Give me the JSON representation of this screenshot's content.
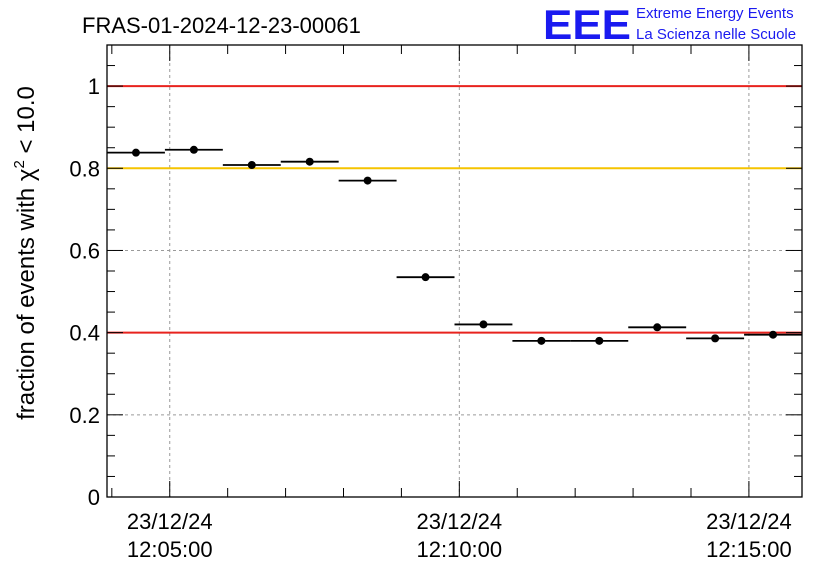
{
  "chart_data": {
    "type": "scatter",
    "title": "FRAS-01-2024-12-23-00061",
    "ylabel": "fraction of events with χ² < 10.0",
    "ylabel_parts": {
      "pre": "fraction of events with ",
      "chi": "χ",
      "sup": "2",
      "post": " < 10.0"
    },
    "xlabel": "",
    "xlim": [
      "12:03:55",
      "12:15:55"
    ],
    "ylim": [
      0,
      1.1
    ],
    "grid": true,
    "yticks": [
      0,
      0.2,
      0.4,
      0.6,
      0.8,
      1
    ],
    "ytick_labels": [
      "0",
      "0.2",
      "0.4",
      "0.6",
      "0.8",
      "1"
    ],
    "xticks": [
      {
        "x": "12:05:00",
        "date": "23/12/24",
        "time": "12:05:00"
      },
      {
        "x": "12:10:00",
        "date": "23/12/24",
        "time": "12:10:00"
      },
      {
        "x": "12:15:00",
        "date": "23/12/24",
        "time": "12:15:00"
      }
    ],
    "hlines": [
      {
        "y": 1.0,
        "color": "#e8231e"
      },
      {
        "y": 0.8,
        "color": "#f5c400"
      },
      {
        "y": 0.4,
        "color": "#e8231e"
      }
    ],
    "points": [
      {
        "x_start": "12:03:55",
        "x_end": "12:04:55",
        "x": "12:04:25",
        "y": 0.838
      },
      {
        "x_start": "12:04:55",
        "x_end": "12:05:55",
        "x": "12:05:25",
        "y": 0.845
      },
      {
        "x_start": "12:05:55",
        "x_end": "12:06:55",
        "x": "12:06:25",
        "y": 0.808
      },
      {
        "x_start": "12:06:55",
        "x_end": "12:07:55",
        "x": "12:07:25",
        "y": 0.816
      },
      {
        "x_start": "12:07:55",
        "x_end": "12:08:55",
        "x": "12:08:25",
        "y": 0.77
      },
      {
        "x_start": "12:08:55",
        "x_end": "12:09:55",
        "x": "12:09:25",
        "y": 0.535
      },
      {
        "x_start": "12:09:55",
        "x_end": "12:10:55",
        "x": "12:10:25",
        "y": 0.42
      },
      {
        "x_start": "12:10:55",
        "x_end": "12:11:55",
        "x": "12:11:25",
        "y": 0.38
      },
      {
        "x_start": "12:11:55",
        "x_end": "12:12:55",
        "x": "12:12:25",
        "y": 0.38
      },
      {
        "x_start": "12:12:55",
        "x_end": "12:13:55",
        "x": "12:13:25",
        "y": 0.413
      },
      {
        "x_start": "12:13:55",
        "x_end": "12:14:55",
        "x": "12:14:25",
        "y": 0.386
      },
      {
        "x_start": "12:14:55",
        "x_end": "12:15:55",
        "x": "12:15:25",
        "y": 0.395
      }
    ]
  },
  "logo": {
    "mark": "EEE",
    "line1": "Extreme Energy Events",
    "line2": "La Scienza nelle Scuole",
    "color": "#1a1af0"
  }
}
